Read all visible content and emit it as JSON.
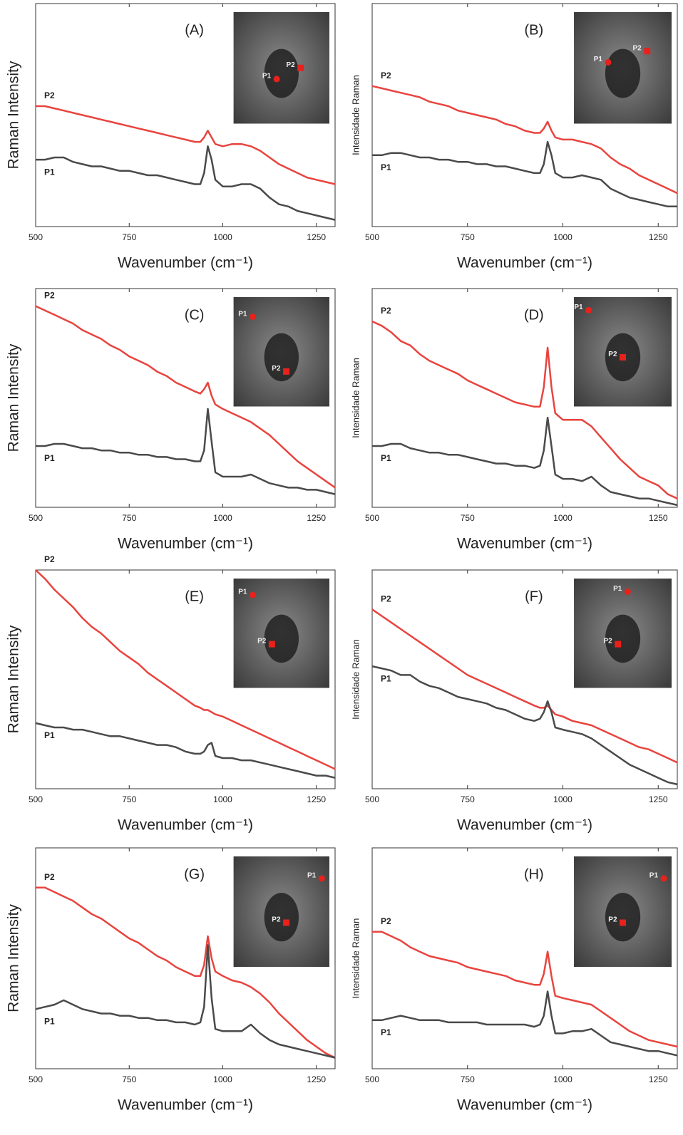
{
  "chart_data": [
    {
      "type": "line",
      "title": "(A)",
      "xlabel": "Wavenumber (cm⁻¹)",
      "ylabel": "Raman Intensity",
      "x": [
        500,
        525,
        550,
        575,
        600,
        625,
        650,
        675,
        700,
        725,
        750,
        775,
        800,
        825,
        850,
        875,
        900,
        925,
        940,
        950,
        960,
        970,
        980,
        1000,
        1025,
        1050,
        1075,
        1100,
        1125,
        1150,
        1175,
        1200,
        1225,
        1250,
        1275,
        1300
      ],
      "xlim": [
        500,
        1300
      ],
      "xticks": [
        500,
        750,
        1000,
        1250
      ],
      "ylim": [
        0,
        100
      ],
      "series": [
        {
          "name": "P2",
          "color": "#e8443f",
          "values": [
            54,
            54,
            53,
            52,
            51,
            50,
            49,
            48,
            47,
            46,
            45,
            44,
            43,
            42,
            41,
            40,
            39,
            38,
            38,
            40,
            43,
            40,
            37,
            36,
            37,
            37,
            36,
            34,
            31,
            28,
            26,
            24,
            22,
            21,
            20,
            19
          ]
        },
        {
          "name": "P1",
          "color": "#4a4a4a",
          "values": [
            30,
            30,
            31,
            31,
            29,
            28,
            27,
            27,
            26,
            25,
            25,
            24,
            23,
            23,
            22,
            21,
            20,
            19,
            19,
            24,
            36,
            30,
            21,
            18,
            18,
            19,
            19,
            17,
            13,
            10,
            9,
            7,
            6,
            5,
            4,
            3
          ]
        }
      ],
      "inset_labels": [
        "P1",
        "P2"
      ]
    },
    {
      "type": "line",
      "title": "(B)",
      "xlabel": "Wavenumber (cm⁻¹)",
      "ylabel": "Intensidade Raman",
      "x": [
        500,
        525,
        550,
        575,
        600,
        625,
        650,
        675,
        700,
        725,
        750,
        775,
        800,
        825,
        850,
        875,
        900,
        925,
        940,
        950,
        960,
        970,
        980,
        1000,
        1025,
        1050,
        1075,
        1100,
        1125,
        1150,
        1175,
        1200,
        1225,
        1250,
        1275,
        1300
      ],
      "xlim": [
        500,
        1300
      ],
      "xticks": [
        500,
        750,
        1000,
        1250
      ],
      "ylim": [
        0,
        100
      ],
      "series": [
        {
          "name": "P2",
          "color": "#e8443f",
          "values": [
            63,
            62,
            61,
            60,
            59,
            58,
            56,
            55,
            54,
            52,
            51,
            50,
            49,
            48,
            46,
            45,
            43,
            42,
            42,
            44,
            47,
            43,
            40,
            39,
            39,
            38,
            37,
            35,
            31,
            28,
            26,
            23,
            21,
            19,
            17,
            15
          ]
        },
        {
          "name": "P1",
          "color": "#4a4a4a",
          "values": [
            32,
            32,
            33,
            33,
            32,
            31,
            31,
            30,
            30,
            29,
            29,
            28,
            28,
            27,
            27,
            26,
            25,
            24,
            24,
            28,
            38,
            32,
            24,
            22,
            22,
            23,
            22,
            21,
            17,
            15,
            13,
            12,
            11,
            10,
            9,
            9
          ]
        }
      ],
      "inset_labels": [
        "P1",
        "P2"
      ]
    },
    {
      "type": "line",
      "title": "(C)",
      "xlabel": "Wavenumber (cm⁻¹)",
      "ylabel": "Raman Intensity",
      "x": [
        500,
        525,
        550,
        575,
        600,
        625,
        650,
        675,
        700,
        725,
        750,
        775,
        800,
        825,
        850,
        875,
        900,
        925,
        940,
        950,
        960,
        970,
        980,
        1000,
        1025,
        1050,
        1075,
        1100,
        1125,
        1150,
        1175,
        1200,
        1225,
        1250,
        1275,
        1300
      ],
      "xlim": [
        500,
        1300
      ],
      "xticks": [
        500,
        750,
        1000,
        1250
      ],
      "ylim": [
        0,
        100
      ],
      "series": [
        {
          "name": "P2",
          "color": "#e8443f",
          "values": [
            92,
            90,
            88,
            86,
            84,
            81,
            79,
            77,
            74,
            72,
            69,
            67,
            65,
            62,
            60,
            57,
            55,
            53,
            52,
            54,
            57,
            51,
            47,
            45,
            43,
            41,
            39,
            36,
            33,
            29,
            25,
            21,
            18,
            15,
            12,
            9
          ]
        },
        {
          "name": "P1",
          "color": "#4a4a4a",
          "values": [
            28,
            28,
            29,
            29,
            28,
            27,
            27,
            26,
            26,
            25,
            25,
            24,
            24,
            23,
            23,
            22,
            22,
            21,
            21,
            26,
            45,
            30,
            16,
            14,
            14,
            14,
            15,
            13,
            11,
            10,
            9,
            9,
            8,
            8,
            7,
            6
          ]
        }
      ],
      "inset_labels": [
        "P1",
        "P2"
      ]
    },
    {
      "type": "line",
      "title": "(D)",
      "xlabel": "Wavenumber (cm⁻¹)",
      "ylabel": "Intensidade Raman",
      "x": [
        500,
        525,
        550,
        575,
        600,
        625,
        650,
        675,
        700,
        725,
        750,
        775,
        800,
        825,
        850,
        875,
        900,
        925,
        940,
        950,
        960,
        970,
        980,
        1000,
        1025,
        1050,
        1075,
        1100,
        1125,
        1150,
        1175,
        1200,
        1225,
        1250,
        1275,
        1300
      ],
      "xlim": [
        500,
        1300
      ],
      "xticks": [
        500,
        750,
        1000,
        1250
      ],
      "ylim": [
        0,
        100
      ],
      "series": [
        {
          "name": "P2",
          "color": "#e8443f",
          "values": [
            85,
            83,
            80,
            76,
            74,
            70,
            67,
            65,
            63,
            61,
            58,
            56,
            54,
            52,
            50,
            48,
            47,
            46,
            46,
            55,
            73,
            55,
            43,
            40,
            40,
            40,
            37,
            32,
            27,
            22,
            18,
            14,
            12,
            10,
            6,
            4
          ]
        },
        {
          "name": "P1",
          "color": "#4a4a4a",
          "values": [
            28,
            28,
            29,
            29,
            27,
            26,
            25,
            25,
            24,
            24,
            23,
            22,
            21,
            20,
            20,
            19,
            19,
            18,
            19,
            26,
            41,
            28,
            15,
            13,
            13,
            12,
            14,
            10,
            7,
            6,
            5,
            4,
            4,
            3,
            2,
            1
          ]
        }
      ],
      "inset_labels": [
        "P1",
        "P2"
      ]
    },
    {
      "type": "line",
      "title": "(E)",
      "xlabel": "Wavenumber (cm⁻¹)",
      "ylabel": "Raman Intensity",
      "x": [
        500,
        525,
        550,
        575,
        600,
        625,
        650,
        675,
        700,
        725,
        750,
        775,
        800,
        825,
        850,
        875,
        900,
        925,
        940,
        950,
        960,
        970,
        980,
        1000,
        1025,
        1050,
        1075,
        1100,
        1125,
        1150,
        1175,
        1200,
        1225,
        1250,
        1275,
        1300
      ],
      "xlim": [
        500,
        1300
      ],
      "xticks": [
        500,
        750,
        1000,
        1250
      ],
      "ylim": [
        0,
        100
      ],
      "series": [
        {
          "name": "P2",
          "color": "#e8443f",
          "values": [
            100,
            96,
            91,
            87,
            83,
            78,
            74,
            71,
            67,
            63,
            60,
            57,
            53,
            50,
            47,
            44,
            41,
            38,
            37,
            36,
            36,
            35,
            34,
            33,
            31,
            29,
            27,
            25,
            23,
            21,
            19,
            17,
            15,
            13,
            11,
            9
          ]
        },
        {
          "name": "P1",
          "color": "#4a4a4a",
          "values": [
            30,
            29,
            28,
            28,
            27,
            27,
            26,
            25,
            24,
            24,
            23,
            22,
            21,
            20,
            20,
            19,
            17,
            16,
            16,
            17,
            20,
            21,
            15,
            14,
            14,
            13,
            13,
            12,
            11,
            10,
            9,
            8,
            7,
            6,
            6,
            5
          ]
        }
      ],
      "inset_labels": [
        "P1",
        "P2"
      ]
    },
    {
      "type": "line",
      "title": "(F)",
      "xlabel": "Wavenumber (cm⁻¹)",
      "ylabel": "Intensidade Raman",
      "x": [
        500,
        525,
        550,
        575,
        600,
        625,
        650,
        675,
        700,
        725,
        750,
        775,
        800,
        825,
        850,
        875,
        900,
        925,
        940,
        950,
        960,
        970,
        980,
        1000,
        1025,
        1050,
        1075,
        1100,
        1125,
        1150,
        1175,
        1200,
        1225,
        1250,
        1275,
        1300
      ],
      "xlim": [
        500,
        1300
      ],
      "xticks": [
        500,
        750,
        1000,
        1250
      ],
      "ylim": [
        0,
        100
      ],
      "series": [
        {
          "name": "P2",
          "color": "#e8443f",
          "values": [
            82,
            79,
            76,
            73,
            70,
            67,
            64,
            61,
            58,
            55,
            52,
            50,
            48,
            46,
            44,
            42,
            40,
            38,
            37,
            37,
            38,
            36,
            34,
            33,
            31,
            30,
            29,
            27,
            25,
            23,
            21,
            19,
            18,
            16,
            14,
            12
          ]
        },
        {
          "name": "P1",
          "color": "#4a4a4a",
          "values": [
            56,
            55,
            54,
            52,
            52,
            49,
            47,
            46,
            44,
            42,
            41,
            40,
            39,
            37,
            36,
            34,
            32,
            31,
            32,
            35,
            40,
            35,
            28,
            27,
            26,
            25,
            23,
            20,
            17,
            14,
            11,
            9,
            7,
            5,
            3,
            2
          ]
        }
      ],
      "inset_labels": [
        "P1",
        "P2"
      ]
    },
    {
      "type": "line",
      "title": "(G)",
      "xlabel": "Wavenumber (cm⁻¹)",
      "ylabel": "Raman Intensity",
      "x": [
        500,
        525,
        550,
        575,
        600,
        625,
        650,
        675,
        700,
        725,
        750,
        775,
        800,
        825,
        850,
        875,
        900,
        925,
        940,
        950,
        960,
        970,
        980,
        1000,
        1025,
        1050,
        1075,
        1100,
        1125,
        1150,
        1175,
        1200,
        1225,
        1250,
        1275,
        1300
      ],
      "xlim": [
        500,
        1300
      ],
      "xticks": [
        500,
        750,
        1000,
        1250
      ],
      "ylim": [
        0,
        100
      ],
      "series": [
        {
          "name": "P2",
          "color": "#e8443f",
          "values": [
            82,
            82,
            80,
            78,
            76,
            73,
            70,
            68,
            65,
            62,
            59,
            57,
            54,
            51,
            49,
            46,
            44,
            42,
            42,
            47,
            60,
            50,
            44,
            42,
            40,
            39,
            37,
            34,
            30,
            25,
            21,
            17,
            13,
            10,
            7,
            5
          ]
        },
        {
          "name": "P1",
          "color": "#4a4a4a",
          "values": [
            27,
            28,
            29,
            31,
            29,
            27,
            26,
            25,
            25,
            24,
            24,
            23,
            23,
            22,
            22,
            21,
            21,
            20,
            21,
            28,
            56,
            32,
            18,
            17,
            17,
            17,
            20,
            16,
            13,
            11,
            10,
            9,
            8,
            7,
            6,
            5
          ]
        }
      ],
      "inset_labels": [
        "P1",
        "P2"
      ]
    },
    {
      "type": "line",
      "title": "(H)",
      "xlabel": "Wavenumber (cm⁻¹)",
      "ylabel": "Intensidade Raman",
      "x": [
        500,
        525,
        550,
        575,
        600,
        625,
        650,
        675,
        700,
        725,
        750,
        775,
        800,
        825,
        850,
        875,
        900,
        925,
        940,
        950,
        960,
        970,
        980,
        1000,
        1025,
        1050,
        1075,
        1100,
        1125,
        1150,
        1175,
        1200,
        1225,
        1250,
        1275,
        1300
      ],
      "xlim": [
        500,
        1300
      ],
      "xticks": [
        500,
        750,
        1000,
        1250
      ],
      "ylim": [
        0,
        100
      ],
      "series": [
        {
          "name": "P2",
          "color": "#e8443f",
          "values": [
            62,
            62,
            60,
            58,
            55,
            53,
            51,
            50,
            49,
            48,
            46,
            45,
            44,
            43,
            42,
            40,
            39,
            38,
            38,
            43,
            53,
            42,
            33,
            32,
            31,
            30,
            29,
            26,
            23,
            20,
            17,
            15,
            13,
            12,
            11,
            10
          ]
        },
        {
          "name": "P1",
          "color": "#4a4a4a",
          "values": [
            22,
            22,
            23,
            24,
            23,
            22,
            22,
            22,
            21,
            21,
            21,
            21,
            20,
            20,
            20,
            20,
            20,
            19,
            20,
            24,
            35,
            24,
            16,
            16,
            17,
            17,
            18,
            15,
            12,
            11,
            10,
            9,
            8,
            8,
            7,
            6
          ]
        }
      ],
      "inset_labels": [
        "P1",
        "P2"
      ]
    }
  ]
}
